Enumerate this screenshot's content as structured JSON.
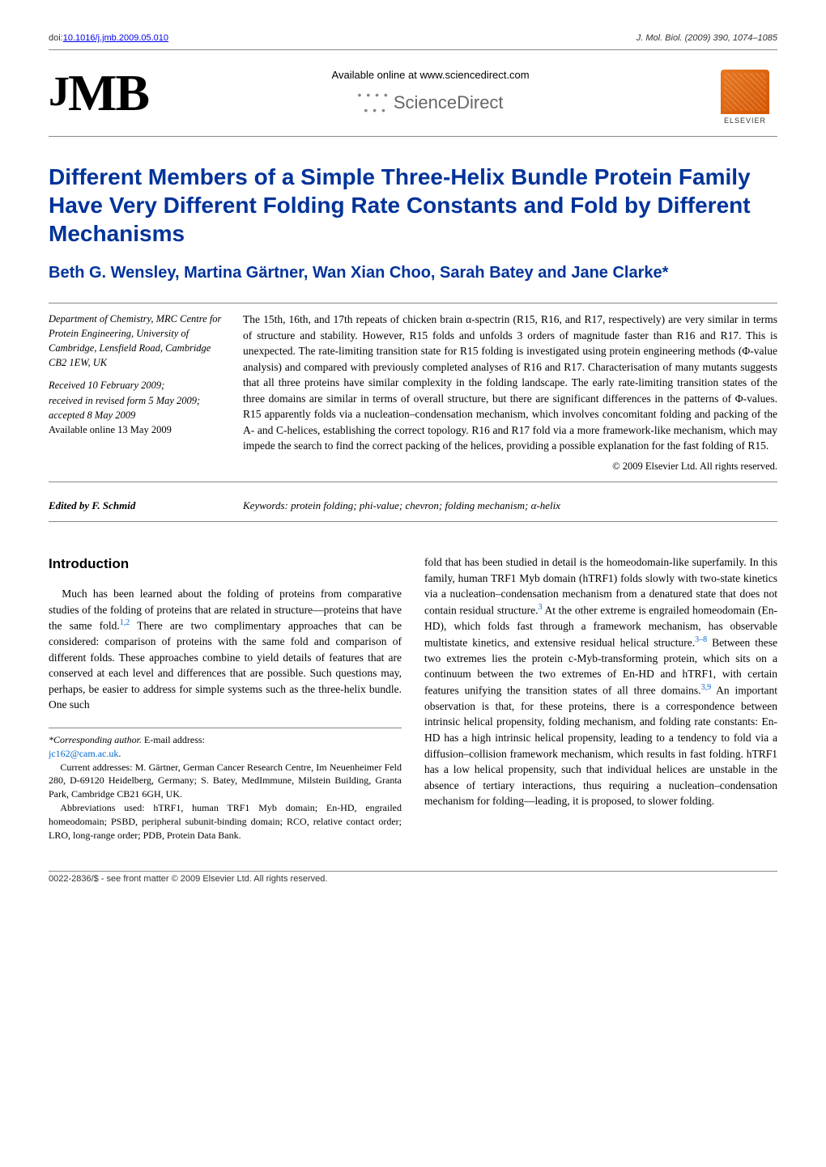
{
  "doi_prefix": "doi:",
  "doi_link_text": "10.1016/j.jmb.2009.05.010",
  "journal_ref": "J. Mol. Biol. (2009) 390, 1074–1085",
  "available_online": "Available online at www.sciencedirect.com",
  "sciencedirect": "ScienceDirect",
  "elsevier": "ELSEVIER",
  "jmb_logo_j": "J",
  "jmb_logo_mb": "MB",
  "title": "Different Members of a Simple Three-Helix Bundle Protein Family Have Very Different Folding Rate Constants and Fold by Different Mechanisms",
  "authors": "Beth G. Wensley, Martina Gärtner, Wan Xian Choo, Sarah Batey and Jane Clarke*",
  "affiliation": "Department of Chemistry, MRC Centre for Protein Engineering, University of Cambridge, Lensfield Road, Cambridge CB2 1EW, UK",
  "dates_received": "Received 10 February 2009;",
  "dates_revised": "received in revised form 5 May 2009;",
  "dates_accepted": "accepted 8 May 2009",
  "dates_online": "Available online 13 May 2009",
  "abstract": "The 15th, 16th, and 17th repeats of chicken brain α-spectrin (R15, R16, and R17, respectively) are very similar in terms of structure and stability. However, R15 folds and unfolds 3 orders of magnitude faster than R16 and R17. This is unexpected. The rate-limiting transition state for R15 folding is investigated using protein engineering methods (Φ-value analysis) and compared with previously completed analyses of R16 and R17. Characterisation of many mutants suggests that all three proteins have similar complexity in the folding landscape. The early rate-limiting transition states of the three domains are similar in terms of overall structure, but there are significant differences in the patterns of Φ-values. R15 apparently folds via a nucleation–condensation mechanism, which involves concomitant folding and packing of the A- and C-helices, establishing the correct topology. R16 and R17 fold via a more framework-like mechanism, which may impede the search to find the correct packing of the helices, providing a possible explanation for the fast folding of R15.",
  "copyright_abstract": "© 2009 Elsevier Ltd. All rights reserved.",
  "editor": "Edited by F. Schmid",
  "keywords": "Keywords: protein folding; phi-value; chevron; folding mechanism; α-helix",
  "intro_heading": "Introduction",
  "intro_p1a": "Much has been learned about the folding of proteins from comparative studies of the folding of proteins that are related in structure—proteins that have the same fold.",
  "intro_sup1": "1,2",
  "intro_p1b": " There are two complimentary approaches that can be considered: comparison of proteins with the same fold and comparison of different folds. These approaches combine to yield details of features that are conserved at each level and differences that are possible. Such questions may, perhaps, be easier to address for simple systems such as the three-helix bundle. One such",
  "footnote_corresponding_label": "*Corresponding author.",
  "footnote_corresponding_text": " E-mail address: ",
  "footnote_email": "jc162@cam.ac.uk",
  "footnote_dot": ".",
  "footnote_addresses": "Current addresses: M. Gärtner, German Cancer Research Centre, Im Neuenheimer Feld 280, D-69120 Heidelberg, Germany; S. Batey, MedImmune, Milstein Building, Granta Park, Cambridge CB21 6GH, UK.",
  "footnote_abbrev": "Abbreviations used: hTRF1, human TRF1 Myb domain; En-HD, engrailed homeodomain; PSBD, peripheral subunit-binding domain; RCO, relative contact order; LRO, long-range order; PDB, Protein Data Bank.",
  "col2_a": "fold that has been studied in detail is the homeodomain-like superfamily. In this family, human TRF1 Myb domain (hTRF1) folds slowly with two-state kinetics via a nucleation–condensation mechanism from a denatured state that does not contain residual structure.",
  "col2_sup1": "3",
  "col2_b": " At the other extreme is engrailed homeodomain (En-HD), which folds fast through a framework mechanism, has observable multistate kinetics, and extensive residual helical structure.",
  "col2_sup2": "3–8",
  "col2_c": " Between these two extremes lies the protein c-Myb-transforming protein, which sits on a continuum between the two extremes of En-HD and hTRF1, with certain features unifying the transition states of all three domains.",
  "col2_sup3": "3,9",
  "col2_d": " An important observation is that, for these proteins, there is a correspondence between intrinsic helical propensity, folding mechanism, and folding rate constants: En-HD has a high intrinsic helical propensity, leading to a tendency to fold via a diffusion–collision framework mechanism, which results in fast folding. hTRF1 has a low helical propensity, such that individual helices are unstable in the absence of tertiary interactions, thus requiring a nucleation–condensation mechanism for folding—leading, it is proposed, to slower folding.",
  "footer_copyright": "0022-2836/$ - see front matter © 2009 Elsevier Ltd. All rights reserved.",
  "colors": {
    "title_blue": "#003399",
    "link_blue": "#0066cc",
    "rule_gray": "#888888",
    "elsevier_orange": "#e87722"
  }
}
